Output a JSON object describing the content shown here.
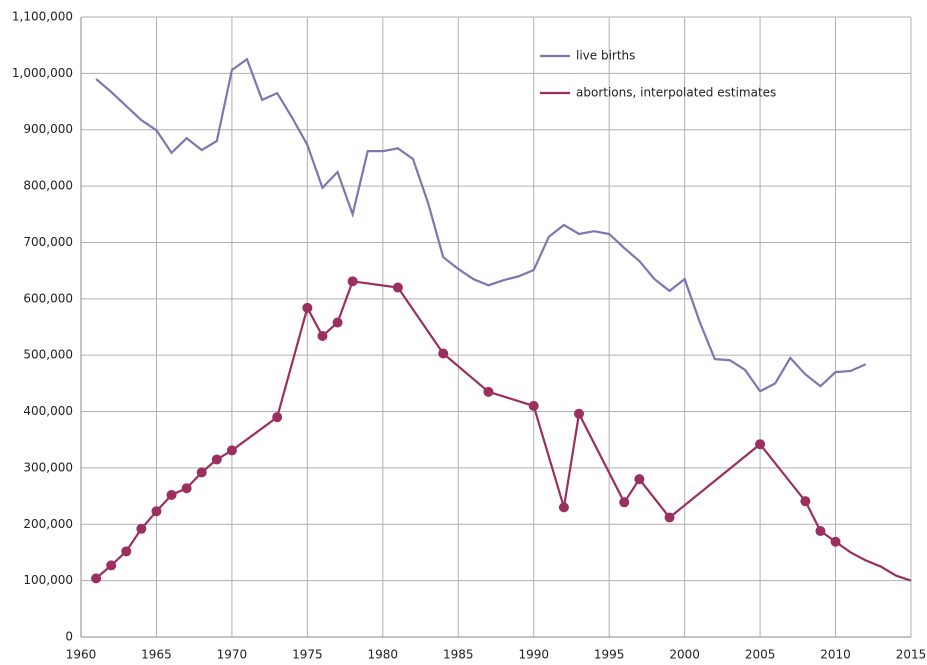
{
  "chart_data": {
    "type": "line",
    "xlim": [
      1960,
      2015
    ],
    "xticks": [
      1960,
      1965,
      1970,
      1975,
      1980,
      1985,
      1990,
      1995,
      2000,
      2005,
      2010,
      2015
    ],
    "ylim": [
      0,
      1100000
    ],
    "yticks": [
      0,
      {
        "value": 100000,
        "label": "100,000"
      },
      {
        "value": 200000,
        "label": "200,000"
      },
      {
        "value": 300000,
        "label": "300,000"
      },
      {
        "value": 400000,
        "label": "400,000"
      },
      {
        "value": 500000,
        "label": "500,000"
      },
      {
        "value": 600000,
        "label": "600,000"
      },
      {
        "value": 700000,
        "label": "700,000"
      },
      {
        "value": 800000,
        "label": "800,000"
      },
      {
        "value": 900000,
        "label": "900,000"
      },
      {
        "value": 1000000,
        "label": "1,000,000"
      },
      {
        "value": 1100000,
        "label": "1,100,000"
      }
    ],
    "grid": true,
    "legend": "top-right",
    "series": [
      {
        "name": "live births",
        "color": "#7a78b0",
        "markers": false,
        "x": [
          1961,
          1962,
          1963,
          1964,
          1965,
          1966,
          1967,
          1968,
          1969,
          1970,
          1971,
          1972,
          1973,
          1974,
          1975,
          1976,
          1977,
          1978,
          1979,
          1980,
          1981,
          1982,
          1983,
          1984,
          1985,
          1986,
          1987,
          1988,
          1989,
          1990,
          1991,
          1992,
          1993,
          1994,
          1995,
          1996,
          1997,
          1998,
          1999,
          2000,
          2001,
          2002,
          2003,
          2004,
          2005,
          2006,
          2007,
          2008,
          2009,
          2010,
          2011,
          2012
        ],
        "values": [
          990000,
          967000,
          942000,
          917000,
          899000,
          859000,
          885000,
          864000,
          880000,
          1006000,
          1025000,
          953000,
          965000,
          921000,
          873000,
          797000,
          825000,
          750000,
          862000,
          862000,
          867000,
          848000,
          770000,
          674000,
          653000,
          635000,
          624000,
          633000,
          640000,
          651000,
          710000,
          731000,
          715000,
          720000,
          715000,
          690000,
          667000,
          635000,
          614000,
          635000,
          559000,
          493000,
          491000,
          474000,
          436000,
          450000,
          495000,
          466000,
          445000,
          470000,
          472000,
          484000
        ]
      },
      {
        "name": "abortions, interpolated estimates",
        "color": "#9b2f60",
        "markers": [
          true,
          true,
          true,
          true,
          true,
          true,
          true,
          true,
          true,
          true,
          true,
          true,
          true,
          true,
          true,
          true,
          true,
          true,
          true,
          true,
          true,
          true,
          true,
          true,
          true,
          true,
          true,
          true,
          false,
          false,
          false,
          false,
          false
        ],
        "x": [
          1961,
          1962,
          1963,
          1964,
          1965,
          1966,
          1967,
          1968,
          1969,
          1970,
          1973,
          1975,
          1976,
          1977,
          1978,
          1981,
          1984,
          1987,
          1990,
          1992,
          1993,
          1996,
          1997,
          1999,
          2005,
          2008,
          2009,
          2010,
          2011,
          2012,
          2013,
          2014,
          2015
        ],
        "values": [
          104000,
          127000,
          152000,
          192000,
          223000,
          252000,
          264000,
          292000,
          315000,
          331000,
          390000,
          584000,
          534000,
          558000,
          631000,
          620000,
          503000,
          435000,
          410000,
          230000,
          396000,
          239000,
          280000,
          212000,
          342000,
          241000,
          188000,
          169000,
          150000,
          136000,
          125000,
          109000,
          100000
        ]
      }
    ]
  }
}
